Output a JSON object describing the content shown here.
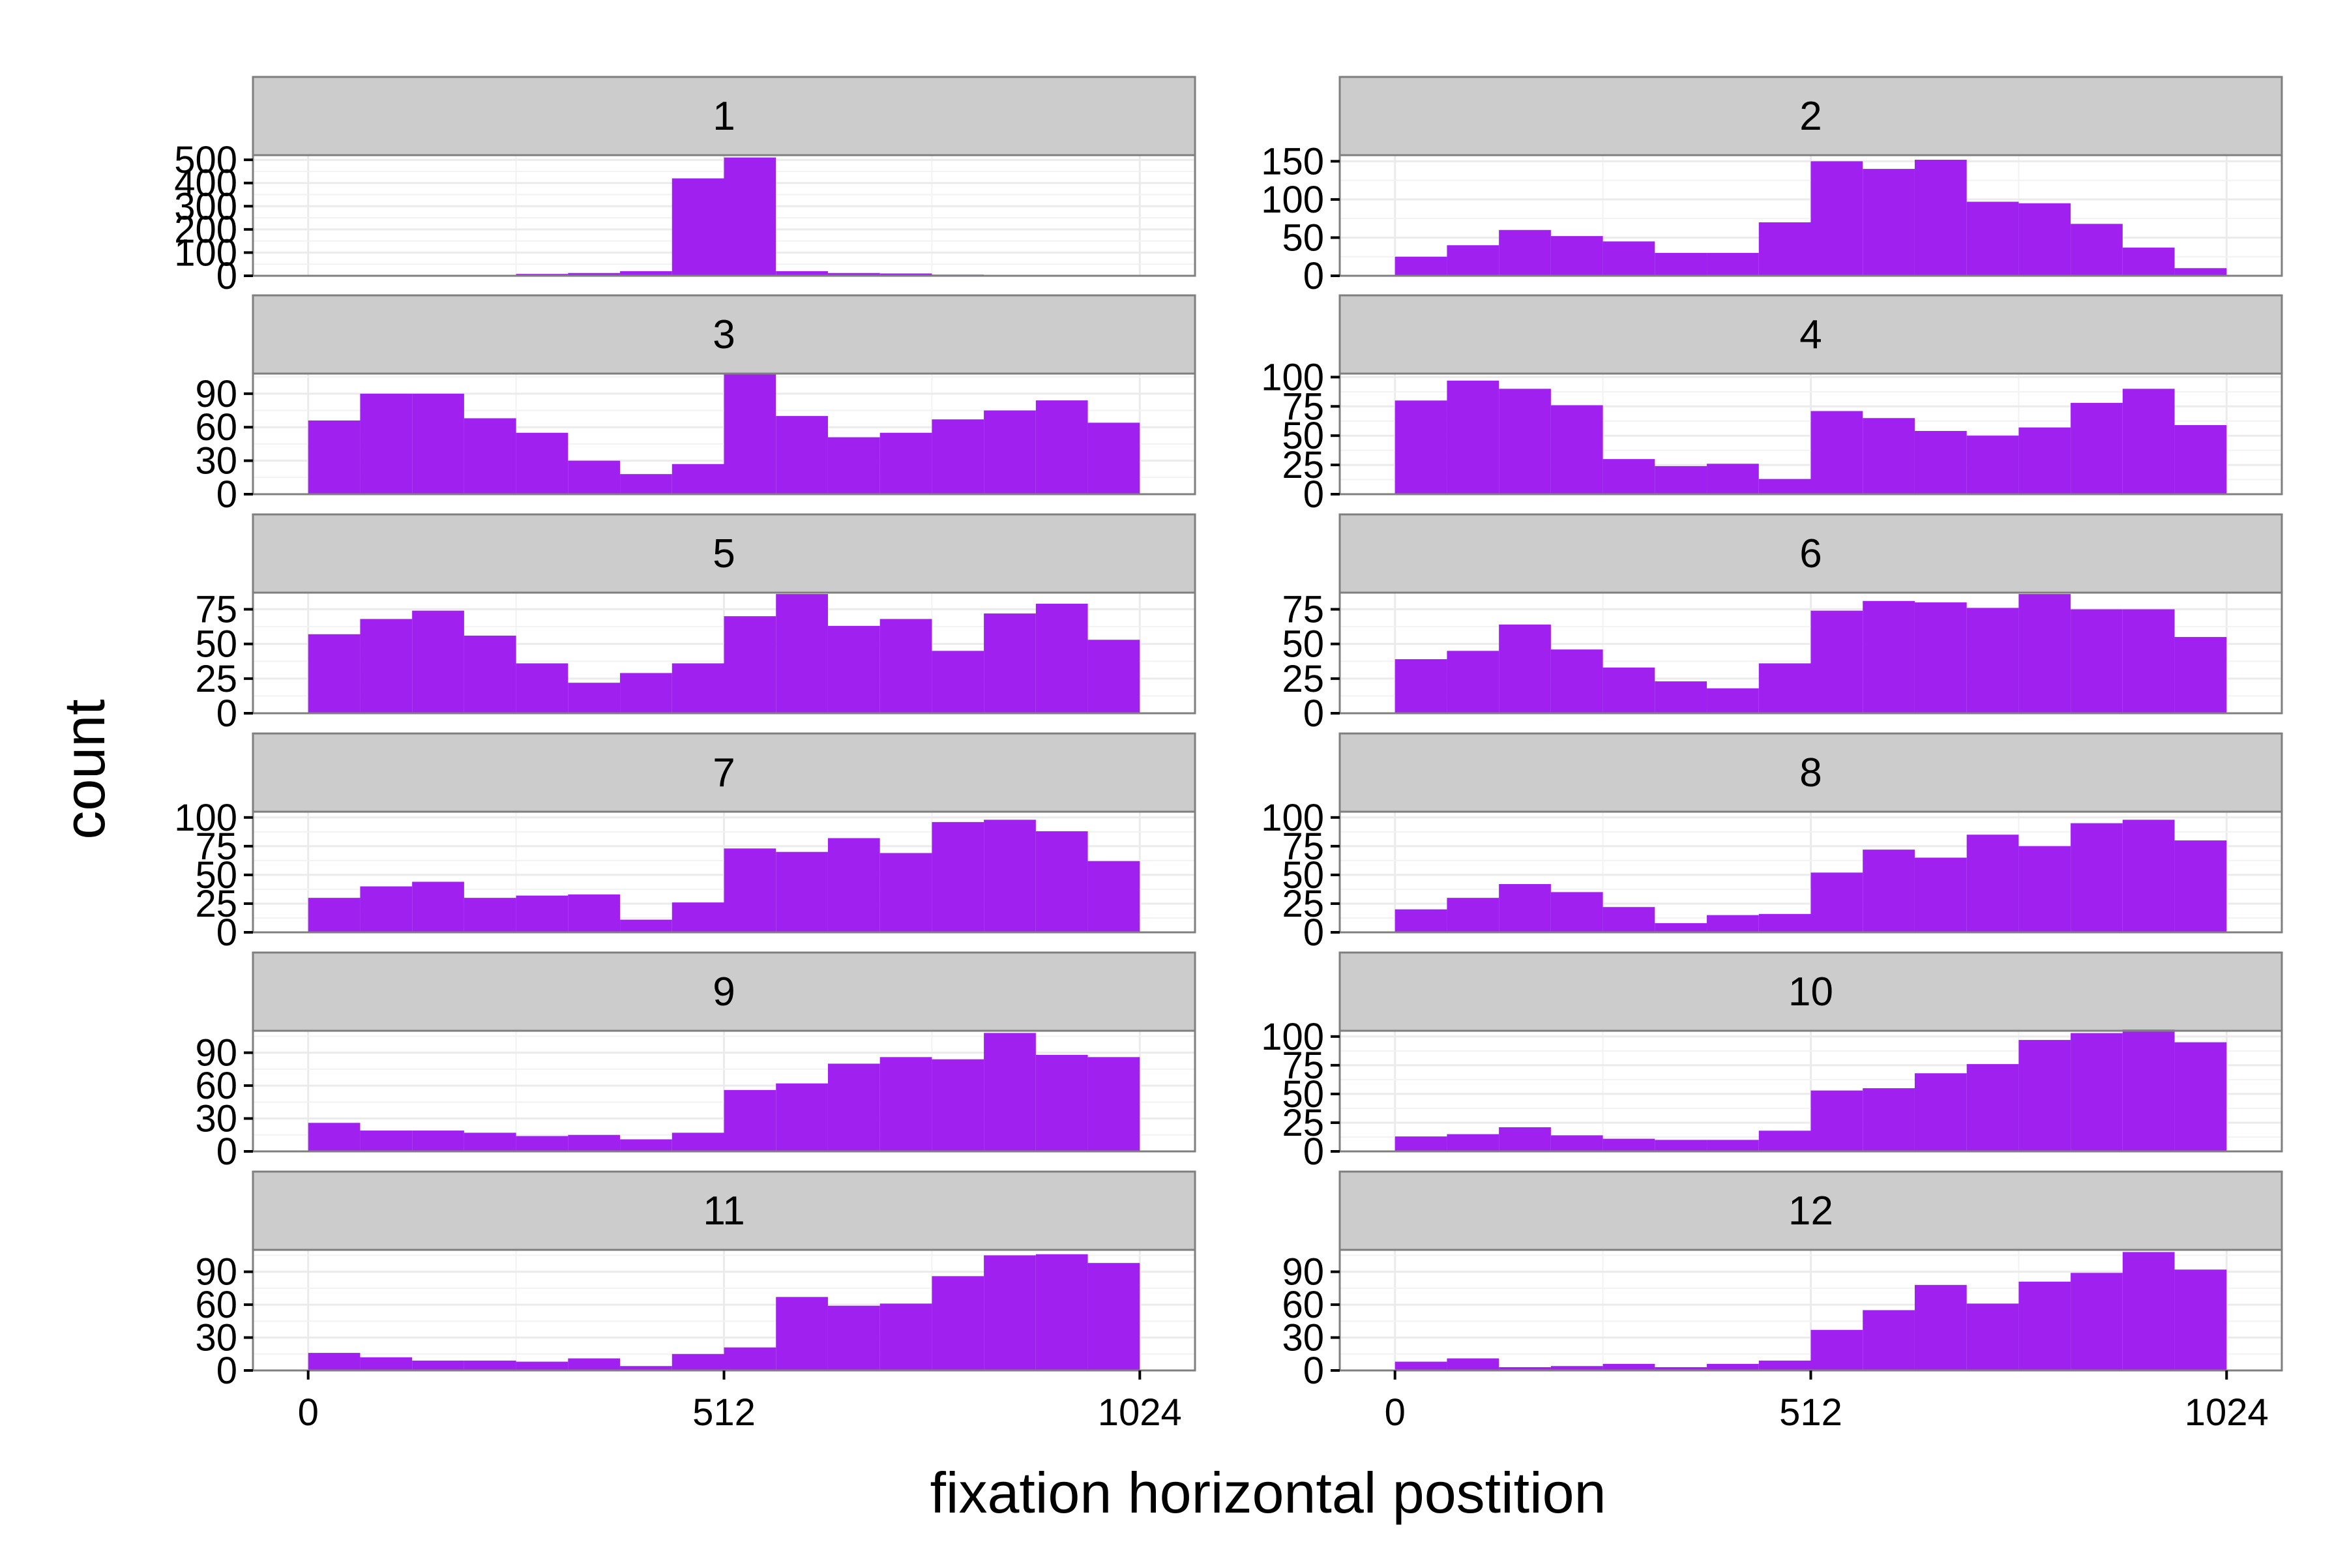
{
  "chart_data": {
    "type": "bar",
    "subtype": "faceted-histogram",
    "xlabel": "fixation horizontal postition",
    "ylabel": "count",
    "xlim": [
      -68,
      1092
    ],
    "x_ticks": [
      0,
      512,
      1024
    ],
    "x_tick_labels": [
      "0",
      "512",
      "1024"
    ],
    "bin_edges": [
      0,
      64,
      128,
      192,
      256,
      320,
      384,
      448,
      512,
      576,
      640,
      704,
      768,
      832,
      896,
      960,
      1024
    ],
    "grid": true,
    "legend": "none",
    "bar_color": "#A020F0",
    "panel_background": "#ffffff",
    "grid_color": "#ebebeb",
    "strip_background": "#cccccc",
    "layout": {
      "ncol": 2,
      "nrow": 6
    },
    "facets": [
      {
        "label": "1",
        "ylim": [
          0,
          520
        ],
        "y_ticks": [
          0,
          100,
          200,
          300,
          400,
          500
        ],
        "values": [
          0,
          2,
          3,
          4,
          8,
          12,
          20,
          420,
          510,
          20,
          12,
          10,
          5,
          0,
          0,
          0
        ]
      },
      {
        "label": "2",
        "ylim": [
          0,
          158
        ],
        "y_ticks": [
          0,
          50,
          100,
          150
        ],
        "values": [
          25,
          40,
          60,
          52,
          45,
          30,
          30,
          70,
          150,
          140,
          152,
          97,
          95,
          68,
          37,
          10
        ]
      },
      {
        "label": "3",
        "ylim": [
          0,
          108
        ],
        "y_ticks": [
          0,
          30,
          60,
          90
        ],
        "values": [
          66,
          90,
          90,
          68,
          55,
          30,
          18,
          27,
          108,
          70,
          51,
          55,
          67,
          75,
          84,
          64
        ]
      },
      {
        "label": "4",
        "ylim": [
          0,
          103
        ],
        "y_ticks": [
          0,
          25,
          50,
          75,
          100
        ],
        "values": [
          80,
          97,
          90,
          76,
          30,
          24,
          26,
          13,
          71,
          65,
          54,
          50,
          57,
          78,
          90,
          59
        ]
      },
      {
        "label": "5",
        "ylim": [
          0,
          87
        ],
        "y_ticks": [
          0,
          25,
          50,
          75
        ],
        "values": [
          57,
          68,
          74,
          56,
          36,
          22,
          29,
          36,
          70,
          86,
          63,
          68,
          45,
          72,
          79,
          53
        ]
      },
      {
        "label": "6",
        "ylim": [
          0,
          87
        ],
        "y_ticks": [
          0,
          25,
          50,
          75
        ],
        "values": [
          39,
          45,
          64,
          46,
          33,
          23,
          18,
          36,
          74,
          81,
          80,
          76,
          86,
          75,
          75,
          55
        ]
      },
      {
        "label": "7",
        "ylim": [
          0,
          105
        ],
        "y_ticks": [
          0,
          25,
          50,
          75,
          100
        ],
        "values": [
          30,
          40,
          44,
          30,
          32,
          33,
          11,
          26,
          73,
          70,
          82,
          69,
          96,
          98,
          88,
          62
        ]
      },
      {
        "label": "8",
        "ylim": [
          0,
          105
        ],
        "y_ticks": [
          0,
          25,
          50,
          75,
          100
        ],
        "values": [
          20,
          30,
          42,
          35,
          22,
          8,
          15,
          16,
          52,
          72,
          65,
          85,
          75,
          95,
          98,
          80
        ]
      },
      {
        "label": "9",
        "ylim": [
          0,
          110
        ],
        "y_ticks": [
          0,
          30,
          60,
          90
        ],
        "values": [
          26,
          19,
          19,
          17,
          14,
          15,
          11,
          17,
          56,
          62,
          80,
          86,
          84,
          108,
          88,
          86
        ]
      },
      {
        "label": "10",
        "ylim": [
          0,
          105
        ],
        "y_ticks": [
          0,
          25,
          50,
          75,
          100
        ],
        "values": [
          13,
          15,
          21,
          14,
          11,
          10,
          10,
          18,
          53,
          55,
          68,
          76,
          97,
          103,
          106,
          95
        ]
      },
      {
        "label": "11",
        "ylim": [
          0,
          110
        ],
        "y_ticks": [
          0,
          30,
          60,
          90
        ],
        "values": [
          16,
          12,
          9,
          9,
          8,
          11,
          4,
          15,
          21,
          67,
          59,
          61,
          86,
          105,
          106,
          98
        ]
      },
      {
        "label": "12",
        "ylim": [
          0,
          110
        ],
        "y_ticks": [
          0,
          30,
          60,
          90
        ],
        "values": [
          8,
          11,
          3,
          4,
          6,
          3,
          6,
          9,
          37,
          55,
          78,
          61,
          81,
          89,
          108,
          92
        ]
      }
    ]
  }
}
